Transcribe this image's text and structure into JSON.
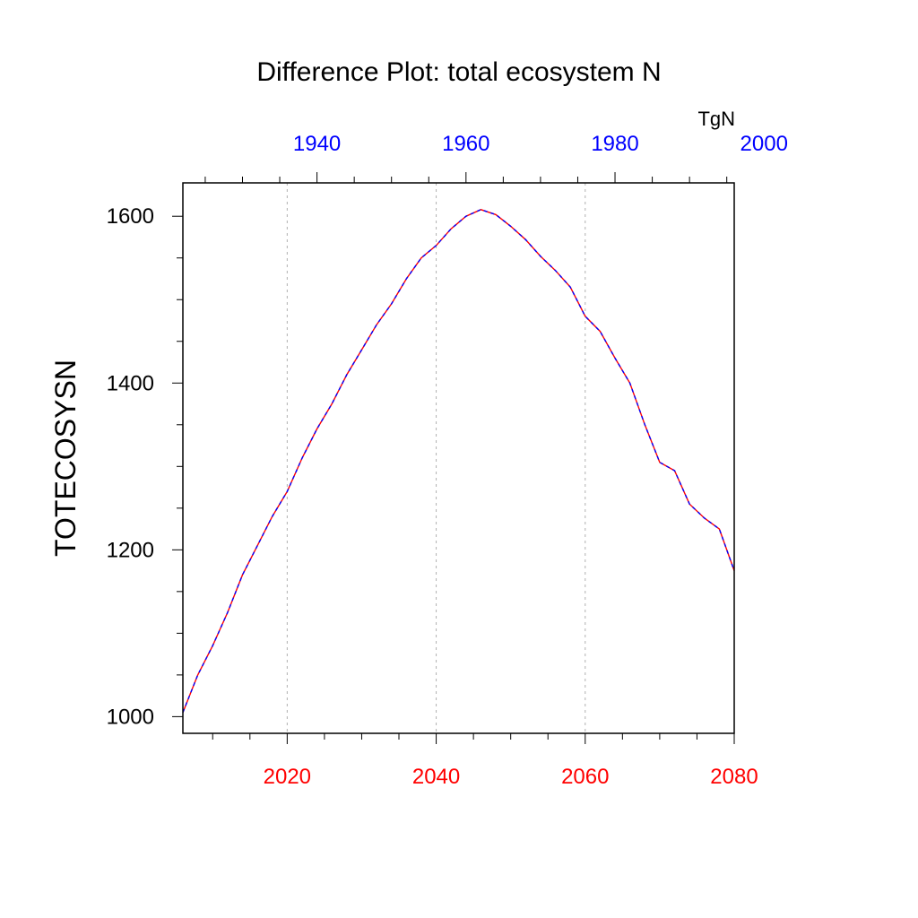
{
  "chart_data": {
    "type": "line",
    "title": "Difference Plot: total ecosystem N",
    "ylabel": "TOTECOSYSN",
    "units": "TgN",
    "xlim": [
      2006,
      2080
    ],
    "ylim": [
      980,
      1640
    ],
    "x_ticks": [
      2020,
      2040,
      2060,
      2080
    ],
    "x_tick_labels": [
      "2020",
      "2040",
      "2060",
      "2080"
    ],
    "x_tick_color": "#ff0000",
    "top_ticks_value": [
      1940,
      1960,
      1980,
      2000
    ],
    "top_tick_labels": [
      "1940",
      "1960",
      "1980",
      "2000"
    ],
    "top_tick_color": "#0000ff",
    "top_axis_offset": 84,
    "y_ticks": [
      1000,
      1200,
      1400,
      1600
    ],
    "y_tick_labels": [
      "1000",
      "1200",
      "1400",
      "1600"
    ],
    "grid": "vertical dashed at major x ticks",
    "series": [
      {
        "name": "TOTECOSYSN difference",
        "colors": [
          "#ff0000",
          "#0000ff"
        ],
        "x": [
          2006,
          2008,
          2010,
          2012,
          2014,
          2016,
          2018,
          2020,
          2022,
          2024,
          2026,
          2028,
          2030,
          2032,
          2034,
          2036,
          2038,
          2040,
          2042,
          2044,
          2046,
          2048,
          2050,
          2052,
          2054,
          2056,
          2058,
          2060,
          2062,
          2064,
          2066,
          2068,
          2070,
          2072,
          2074,
          2076,
          2078,
          2080
        ],
        "values": [
          1005,
          1050,
          1085,
          1125,
          1170,
          1205,
          1240,
          1270,
          1310,
          1345,
          1375,
          1410,
          1440,
          1470,
          1495,
          1525,
          1550,
          1565,
          1585,
          1600,
          1608,
          1602,
          1588,
          1572,
          1552,
          1535,
          1515,
          1480,
          1462,
          1430,
          1400,
          1350,
          1305,
          1295,
          1255,
          1238,
          1225,
          1175
        ]
      }
    ]
  }
}
